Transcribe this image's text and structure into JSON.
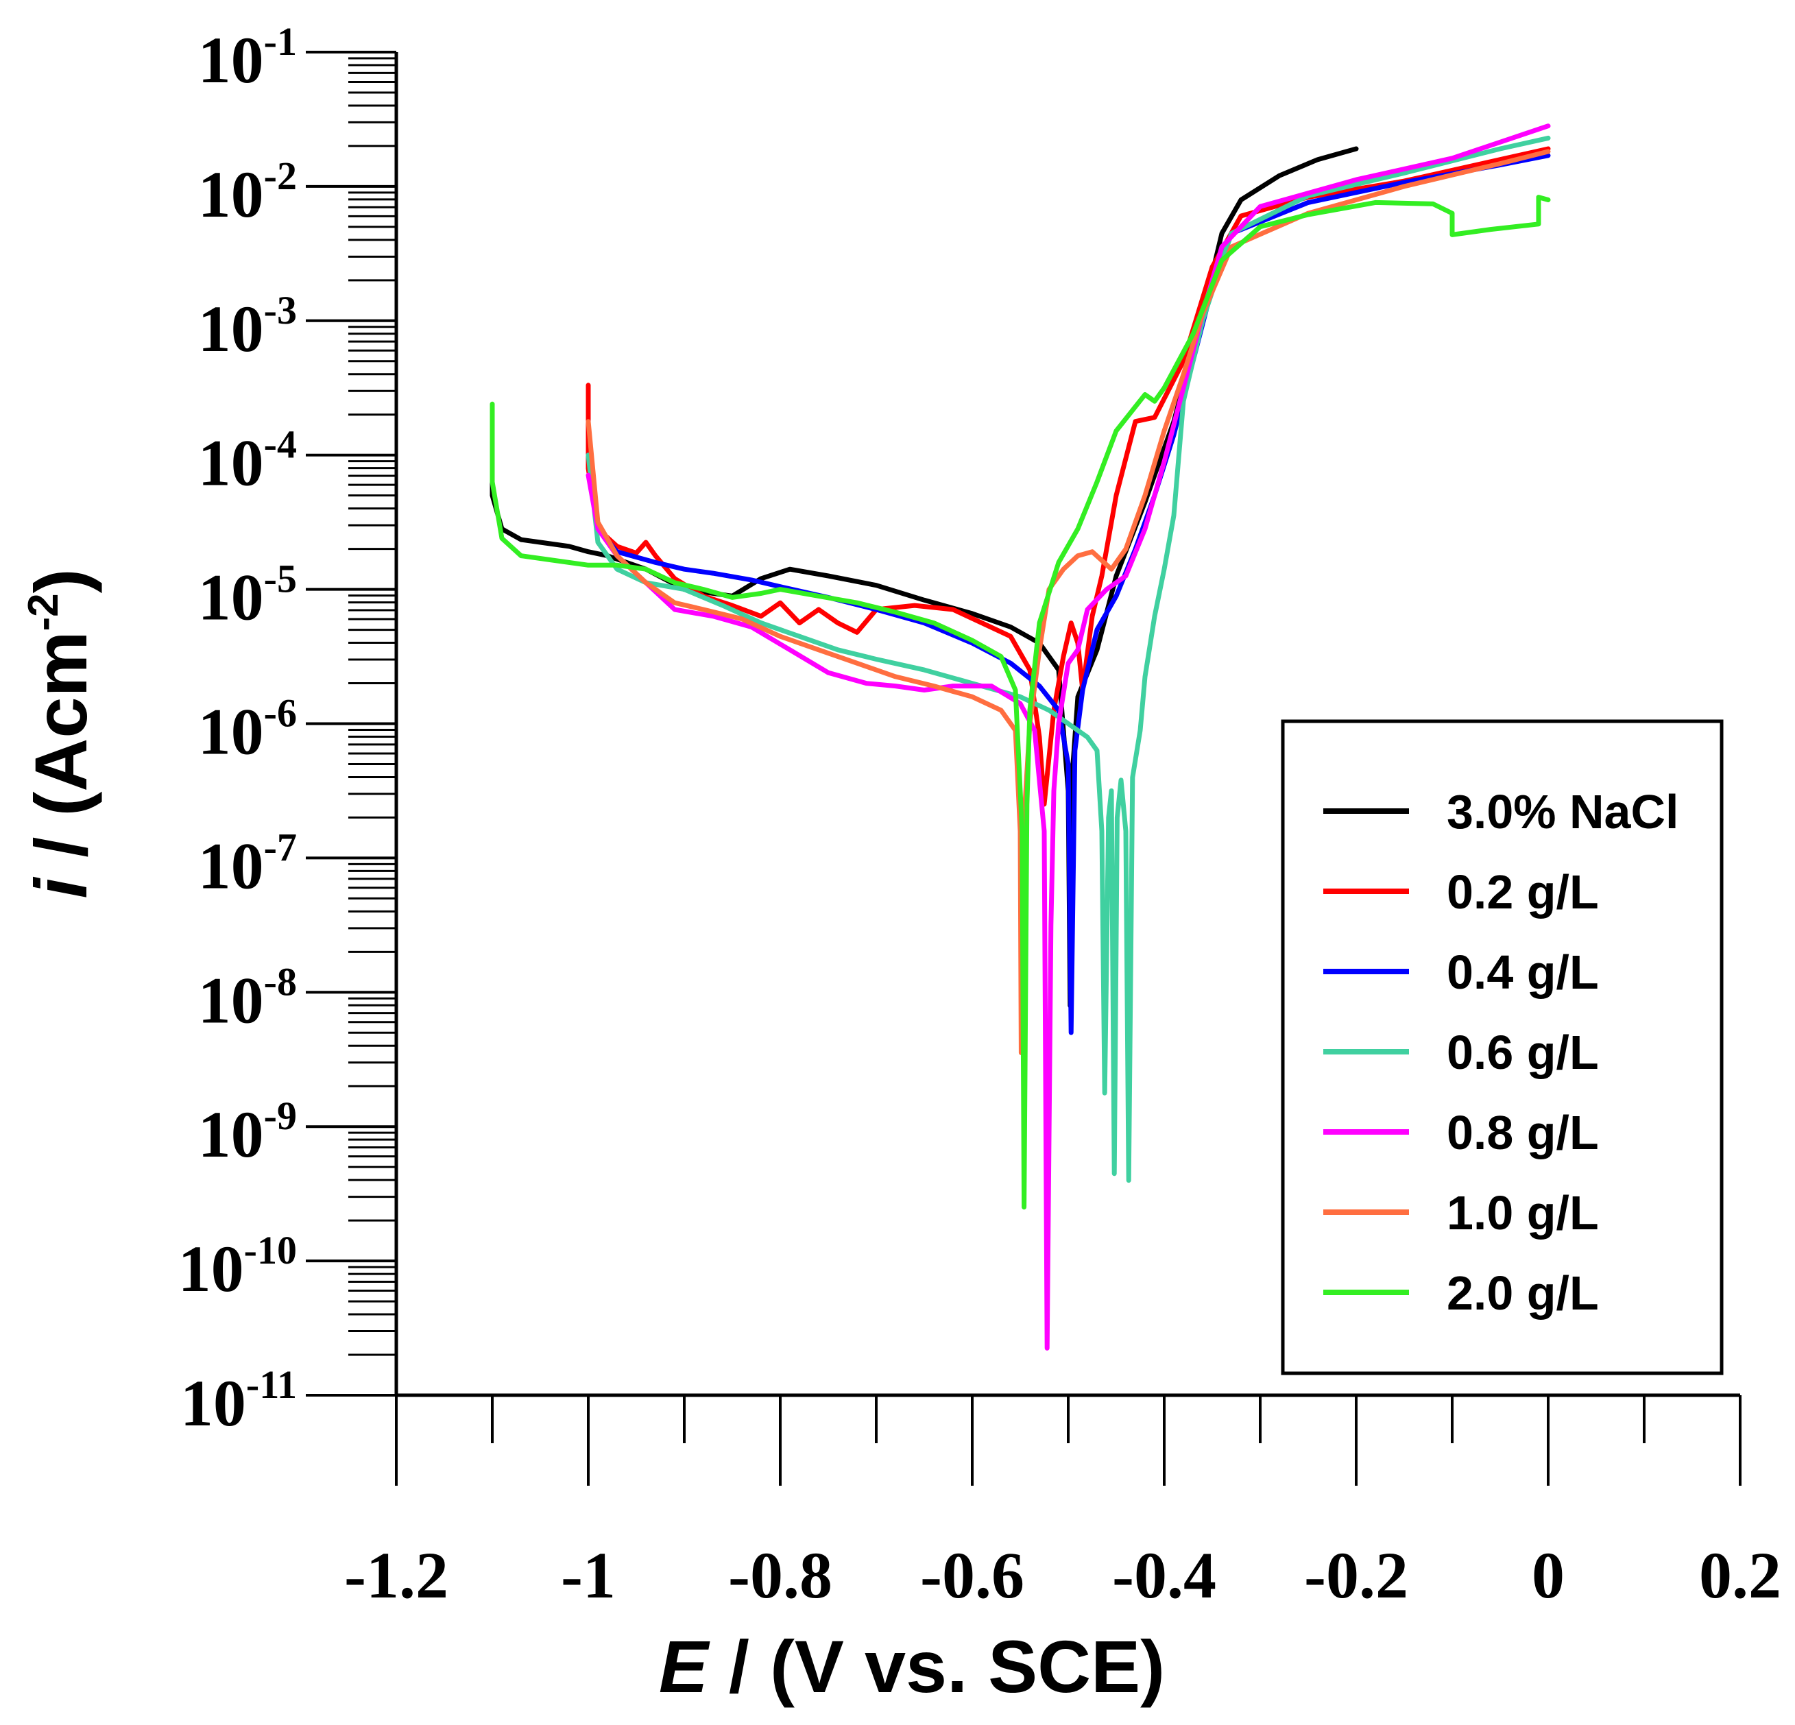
{
  "chart_data": {
    "type": "line",
    "title": "",
    "xlabel_var": "E",
    "xlabel_rest": " / (V vs. SCE)",
    "ylabel_var": "i",
    "ylabel_rest": " / (Acm",
    "ylabel_exp": "-2",
    "ylabel_close": ")",
    "xlim": [
      -1.2,
      0.2
    ],
    "ylim_log10": [
      -11,
      -1
    ],
    "xticks": [
      {
        "value": -1.2,
        "label": "-1.2"
      },
      {
        "value": -1.0,
        "label": "-1"
      },
      {
        "value": -0.8,
        "label": "-0.8"
      },
      {
        "value": -0.6,
        "label": "-0.6"
      },
      {
        "value": -0.4,
        "label": "-0.4"
      },
      {
        "value": -0.2,
        "label": "-0.2"
      },
      {
        "value": 0.0,
        "label": "0"
      },
      {
        "value": 0.2,
        "label": "0.2"
      }
    ],
    "yticks": [
      {
        "exp": -1,
        "base": "10",
        "sup": "-1"
      },
      {
        "exp": -2,
        "base": "10",
        "sup": "-2"
      },
      {
        "exp": -3,
        "base": "10",
        "sup": "-3"
      },
      {
        "exp": -4,
        "base": "10",
        "sup": "-4"
      },
      {
        "exp": -5,
        "base": "10",
        "sup": "-5"
      },
      {
        "exp": -6,
        "base": "10",
        "sup": "-6"
      },
      {
        "exp": -7,
        "base": "10",
        "sup": "-7"
      },
      {
        "exp": -8,
        "base": "10",
        "sup": "-8"
      },
      {
        "exp": -9,
        "base": "10",
        "sup": "-9"
      },
      {
        "exp": -10,
        "base": "10",
        "sup": "-10"
      },
      {
        "exp": -11,
        "base": "10",
        "sup": "-11"
      }
    ],
    "legend_position": "lower-right",
    "series": [
      {
        "name": "3.0% NaCl",
        "color": "#000000",
        "points": [
          [
            -1.1,
            -3.8
          ],
          [
            -1.1,
            -4.3
          ],
          [
            -1.09,
            -4.55
          ],
          [
            -1.07,
            -4.63
          ],
          [
            -1.05,
            -4.65
          ],
          [
            -1.02,
            -4.68
          ],
          [
            -1.0,
            -4.72
          ],
          [
            -0.98,
            -4.75
          ],
          [
            -0.94,
            -4.85
          ],
          [
            -0.9,
            -5.0
          ],
          [
            -0.85,
            -5.05
          ],
          [
            -0.82,
            -4.92
          ],
          [
            -0.79,
            -4.85
          ],
          [
            -0.75,
            -4.9
          ],
          [
            -0.7,
            -4.97
          ],
          [
            -0.65,
            -5.08
          ],
          [
            -0.6,
            -5.18
          ],
          [
            -0.56,
            -5.28
          ],
          [
            -0.53,
            -5.4
          ],
          [
            -0.51,
            -5.6
          ],
          [
            -0.5,
            -6.5
          ],
          [
            -0.498,
            -8.1
          ],
          [
            -0.495,
            -6.3
          ],
          [
            -0.49,
            -5.8
          ],
          [
            -0.47,
            -5.45
          ],
          [
            -0.45,
            -4.9
          ],
          [
            -0.42,
            -4.35
          ],
          [
            -0.39,
            -3.75
          ],
          [
            -0.36,
            -2.95
          ],
          [
            -0.34,
            -2.35
          ],
          [
            -0.32,
            -2.1
          ],
          [
            -0.28,
            -1.92
          ],
          [
            -0.24,
            -1.8
          ],
          [
            -0.2,
            -1.72
          ]
        ]
      },
      {
        "name": "0.2 g/L",
        "color": "#ff0000",
        "points": [
          [
            -1.0,
            -3.48
          ],
          [
            -1.0,
            -4.1
          ],
          [
            -0.99,
            -4.55
          ],
          [
            -0.97,
            -4.68
          ],
          [
            -0.95,
            -4.73
          ],
          [
            -0.94,
            -4.65
          ],
          [
            -0.93,
            -4.75
          ],
          [
            -0.91,
            -4.92
          ],
          [
            -0.88,
            -5.05
          ],
          [
            -0.85,
            -5.12
          ],
          [
            -0.82,
            -5.2
          ],
          [
            -0.8,
            -5.1
          ],
          [
            -0.78,
            -5.25
          ],
          [
            -0.76,
            -5.15
          ],
          [
            -0.74,
            -5.25
          ],
          [
            -0.72,
            -5.32
          ],
          [
            -0.7,
            -5.15
          ],
          [
            -0.66,
            -5.12
          ],
          [
            -0.62,
            -5.15
          ],
          [
            -0.59,
            -5.25
          ],
          [
            -0.56,
            -5.35
          ],
          [
            -0.54,
            -5.6
          ],
          [
            -0.53,
            -6.1
          ],
          [
            -0.525,
            -6.6
          ],
          [
            -0.515,
            -5.9
          ],
          [
            -0.505,
            -5.5
          ],
          [
            -0.497,
            -5.25
          ],
          [
            -0.49,
            -5.4
          ],
          [
            -0.485,
            -5.75
          ],
          [
            -0.475,
            -5.2
          ],
          [
            -0.465,
            -4.9
          ],
          [
            -0.45,
            -4.3
          ],
          [
            -0.43,
            -3.75
          ],
          [
            -0.41,
            -3.72
          ],
          [
            -0.38,
            -3.3
          ],
          [
            -0.35,
            -2.6
          ],
          [
            -0.32,
            -2.22
          ],
          [
            -0.25,
            -2.08
          ],
          [
            -0.15,
            -1.96
          ],
          [
            -0.05,
            -1.8
          ],
          [
            0.0,
            -1.72
          ]
        ]
      },
      {
        "name": "0.4 g/L",
        "color": "#0000ff",
        "points": [
          [
            -1.0,
            -4.0
          ],
          [
            -0.99,
            -4.55
          ],
          [
            -0.97,
            -4.72
          ],
          [
            -0.93,
            -4.8
          ],
          [
            -0.9,
            -4.85
          ],
          [
            -0.87,
            -4.88
          ],
          [
            -0.83,
            -4.93
          ],
          [
            -0.8,
            -4.98
          ],
          [
            -0.75,
            -5.06
          ],
          [
            -0.7,
            -5.15
          ],
          [
            -0.65,
            -5.25
          ],
          [
            -0.6,
            -5.4
          ],
          [
            -0.56,
            -5.55
          ],
          [
            -0.53,
            -5.72
          ],
          [
            -0.51,
            -5.9
          ],
          [
            -0.5,
            -6.3
          ],
          [
            -0.497,
            -8.3
          ],
          [
            -0.493,
            -6.2
          ],
          [
            -0.485,
            -5.75
          ],
          [
            -0.47,
            -5.3
          ],
          [
            -0.45,
            -5.05
          ],
          [
            -0.43,
            -4.7
          ],
          [
            -0.41,
            -4.3
          ],
          [
            -0.39,
            -3.85
          ],
          [
            -0.37,
            -3.3
          ],
          [
            -0.35,
            -2.75
          ],
          [
            -0.33,
            -2.35
          ],
          [
            -0.25,
            -2.12
          ],
          [
            -0.15,
            -1.97
          ],
          [
            -0.05,
            -1.84
          ],
          [
            0.0,
            -1.77
          ]
        ]
      },
      {
        "name": "0.6 g/L",
        "color": "#40d0a0",
        "points": [
          [
            -1.0,
            -4.0
          ],
          [
            -0.99,
            -4.65
          ],
          [
            -0.97,
            -4.85
          ],
          [
            -0.94,
            -4.95
          ],
          [
            -0.9,
            -5.0
          ],
          [
            -0.86,
            -5.12
          ],
          [
            -0.82,
            -5.25
          ],
          [
            -0.78,
            -5.35
          ],
          [
            -0.74,
            -5.45
          ],
          [
            -0.7,
            -5.52
          ],
          [
            -0.65,
            -5.6
          ],
          [
            -0.6,
            -5.7
          ],
          [
            -0.55,
            -5.8
          ],
          [
            -0.52,
            -5.9
          ],
          [
            -0.5,
            -6.0
          ],
          [
            -0.48,
            -6.1
          ],
          [
            -0.47,
            -6.2
          ],
          [
            -0.465,
            -6.8
          ],
          [
            -0.462,
            -8.75
          ],
          [
            -0.458,
            -6.7
          ],
          [
            -0.455,
            -6.5
          ],
          [
            -0.452,
            -9.35
          ],
          [
            -0.449,
            -6.7
          ],
          [
            -0.445,
            -6.42
          ],
          [
            -0.44,
            -6.8
          ],
          [
            -0.437,
            -9.4
          ],
          [
            -0.433,
            -6.4
          ],
          [
            -0.425,
            -6.05
          ],
          [
            -0.42,
            -5.65
          ],
          [
            -0.41,
            -5.2
          ],
          [
            -0.4,
            -4.85
          ],
          [
            -0.39,
            -4.45
          ],
          [
            -0.38,
            -3.6
          ],
          [
            -0.36,
            -3.0
          ],
          [
            -0.33,
            -2.35
          ],
          [
            -0.25,
            -2.07
          ],
          [
            -0.15,
            -1.9
          ],
          [
            -0.05,
            -1.72
          ],
          [
            0.0,
            -1.64
          ]
        ]
      },
      {
        "name": "0.8 g/L",
        "color": "#ff00ff",
        "points": [
          [
            -1.0,
            -4.15
          ],
          [
            -0.99,
            -4.55
          ],
          [
            -0.97,
            -4.75
          ],
          [
            -0.94,
            -4.95
          ],
          [
            -0.91,
            -5.15
          ],
          [
            -0.87,
            -5.2
          ],
          [
            -0.83,
            -5.28
          ],
          [
            -0.79,
            -5.45
          ],
          [
            -0.75,
            -5.62
          ],
          [
            -0.71,
            -5.7
          ],
          [
            -0.68,
            -5.72
          ],
          [
            -0.65,
            -5.75
          ],
          [
            -0.62,
            -5.72
          ],
          [
            -0.58,
            -5.72
          ],
          [
            -0.55,
            -5.85
          ],
          [
            -0.535,
            -6.05
          ],
          [
            -0.525,
            -6.8
          ],
          [
            -0.522,
            -10.65
          ],
          [
            -0.518,
            -7.5
          ],
          [
            -0.515,
            -6.5
          ],
          [
            -0.51,
            -6.0
          ],
          [
            -0.5,
            -5.55
          ],
          [
            -0.49,
            -5.45
          ],
          [
            -0.48,
            -5.15
          ],
          [
            -0.46,
            -5.0
          ],
          [
            -0.44,
            -4.9
          ],
          [
            -0.42,
            -4.55
          ],
          [
            -0.4,
            -4.05
          ],
          [
            -0.38,
            -3.5
          ],
          [
            -0.36,
            -2.95
          ],
          [
            -0.34,
            -2.45
          ],
          [
            -0.3,
            -2.15
          ],
          [
            -0.2,
            -1.95
          ],
          [
            -0.1,
            -1.79
          ],
          [
            0.0,
            -1.55
          ]
        ]
      },
      {
        "name": "1.0 g/L",
        "color": "#ff6e40",
        "points": [
          [
            -1.0,
            -3.75
          ],
          [
            -0.99,
            -4.5
          ],
          [
            -0.97,
            -4.75
          ],
          [
            -0.94,
            -4.95
          ],
          [
            -0.91,
            -5.1
          ],
          [
            -0.88,
            -5.15
          ],
          [
            -0.84,
            -5.22
          ],
          [
            -0.8,
            -5.35
          ],
          [
            -0.76,
            -5.45
          ],
          [
            -0.72,
            -5.55
          ],
          [
            -0.68,
            -5.65
          ],
          [
            -0.64,
            -5.72
          ],
          [
            -0.6,
            -5.8
          ],
          [
            -0.57,
            -5.9
          ],
          [
            -0.555,
            -6.05
          ],
          [
            -0.55,
            -6.8
          ],
          [
            -0.549,
            -8.45
          ],
          [
            -0.545,
            -6.6
          ],
          [
            -0.54,
            -6.0
          ],
          [
            -0.53,
            -5.45
          ],
          [
            -0.52,
            -5.0
          ],
          [
            -0.505,
            -4.85
          ],
          [
            -0.49,
            -4.75
          ],
          [
            -0.475,
            -4.72
          ],
          [
            -0.455,
            -4.85
          ],
          [
            -0.44,
            -4.7
          ],
          [
            -0.42,
            -4.3
          ],
          [
            -0.4,
            -3.82
          ],
          [
            -0.38,
            -3.4
          ],
          [
            -0.36,
            -2.95
          ],
          [
            -0.33,
            -2.45
          ],
          [
            -0.25,
            -2.2
          ],
          [
            -0.15,
            -2.0
          ],
          [
            -0.05,
            -1.83
          ],
          [
            0.0,
            -1.74
          ]
        ]
      },
      {
        "name": "2.0 g/L",
        "color": "#33ee22",
        "points": [
          [
            -1.1,
            -3.62
          ],
          [
            -1.1,
            -4.2
          ],
          [
            -1.09,
            -4.62
          ],
          [
            -1.07,
            -4.75
          ],
          [
            -1.04,
            -4.78
          ],
          [
            -1.0,
            -4.82
          ],
          [
            -0.97,
            -4.82
          ],
          [
            -0.94,
            -4.85
          ],
          [
            -0.91,
            -4.95
          ],
          [
            -0.88,
            -5.0
          ],
          [
            -0.85,
            -5.06
          ],
          [
            -0.82,
            -5.03
          ],
          [
            -0.8,
            -5.0
          ],
          [
            -0.76,
            -5.05
          ],
          [
            -0.72,
            -5.1
          ],
          [
            -0.68,
            -5.17
          ],
          [
            -0.64,
            -5.25
          ],
          [
            -0.6,
            -5.38
          ],
          [
            -0.57,
            -5.5
          ],
          [
            -0.555,
            -5.75
          ],
          [
            -0.548,
            -6.8
          ],
          [
            -0.546,
            -9.6
          ],
          [
            -0.543,
            -6.6
          ],
          [
            -0.54,
            -5.9
          ],
          [
            -0.53,
            -5.25
          ],
          [
            -0.51,
            -4.8
          ],
          [
            -0.49,
            -4.55
          ],
          [
            -0.47,
            -4.2
          ],
          [
            -0.45,
            -3.82
          ],
          [
            -0.42,
            -3.55
          ],
          [
            -0.41,
            -3.6
          ],
          [
            -0.4,
            -3.5
          ],
          [
            -0.37,
            -3.1
          ],
          [
            -0.34,
            -2.55
          ],
          [
            -0.3,
            -2.3
          ],
          [
            -0.25,
            -2.21
          ],
          [
            -0.18,
            -2.12
          ],
          [
            -0.12,
            -2.13
          ],
          [
            -0.1,
            -2.2
          ],
          [
            -0.1,
            -2.36
          ],
          [
            -0.06,
            -2.32
          ],
          [
            -0.01,
            -2.28
          ],
          [
            -0.01,
            -2.08
          ],
          [
            0.0,
            -2.1
          ]
        ]
      }
    ]
  }
}
